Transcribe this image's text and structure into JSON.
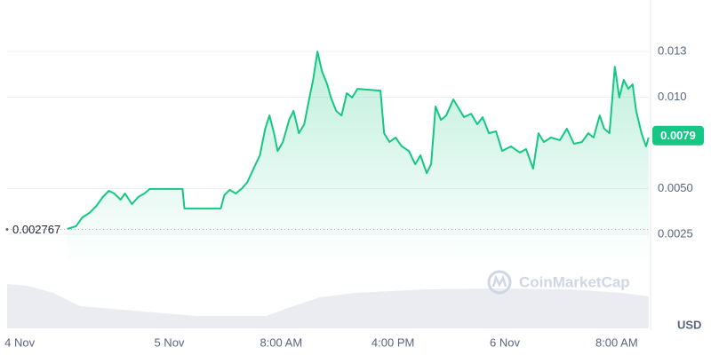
{
  "chart_data": {
    "type": "line",
    "x": [
      16.7,
      17.33,
      17.78,
      18.29,
      18.79,
      19.24,
      19.68,
      20.06,
      20.51,
      20.83,
      21.33,
      21.78,
      22.22,
      22.6,
      24.95,
      25.08,
      27.68,
      27.94,
      28.32,
      28.76,
      29.21,
      29.59,
      30.03,
      30.48,
      30.86,
      31.17,
      31.49,
      31.75,
      32.13,
      32.57,
      32.89,
      33.27,
      33.65,
      34.03,
      34.29,
      34.6,
      34.92,
      35.3,
      35.56,
      35.94,
      36.32,
      36.7,
      37.08,
      37.46,
      39.11,
      39.37,
      39.75,
      40.19,
      40.63,
      41.14,
      41.59,
      41.97,
      42.41,
      42.73,
      43.05,
      43.43,
      43.81,
      44.32,
      44.7,
      45.08,
      45.59,
      46.03,
      46.41,
      46.86,
      47.37,
      47.81,
      48.44,
      49.08,
      49.52,
      50.03,
      50.41,
      50.79,
      51.3,
      51.94,
      52.44,
      52.95,
      53.52,
      53.97,
      54.35,
      54.79,
      55.11,
      55.49,
      55.87,
      56.19,
      56.51,
      56.83,
      57.14,
      57.4,
      57.78,
      58.1,
      58.29
    ],
    "series": [
      {
        "color": "#16c784",
        "values": [
          0.00279,
          0.00294,
          0.00342,
          0.00367,
          0.00405,
          0.00454,
          0.00488,
          0.00473,
          0.00439,
          0.00473,
          0.00415,
          0.00454,
          0.00473,
          0.00498,
          0.00498,
          0.00391,
          0.00391,
          0.00464,
          0.00493,
          0.00473,
          0.00502,
          0.00536,
          0.00609,
          0.00682,
          0.00828,
          0.009,
          0.00803,
          0.00706,
          0.00755,
          0.00876,
          0.00925,
          0.00803,
          0.00852,
          0.00998,
          0.01095,
          0.0125,
          0.01143,
          0.0107,
          0.00998,
          0.00925,
          0.009,
          0.01022,
          0.00998,
          0.01046,
          0.01036,
          0.00803,
          0.00755,
          0.00779,
          0.00731,
          0.00706,
          0.00633,
          0.00682,
          0.00585,
          0.00633,
          0.00949,
          0.00876,
          0.009,
          0.00988,
          0.00939,
          0.00891,
          0.0091,
          0.00852,
          0.00891,
          0.00803,
          0.00813,
          0.00706,
          0.00731,
          0.00697,
          0.00716,
          0.00609,
          0.00803,
          0.00755,
          0.00779,
          0.00765,
          0.00828,
          0.00745,
          0.00755,
          0.00803,
          0.00779,
          0.009,
          0.00828,
          0.00803,
          0.01167,
          0.00998,
          0.01095,
          0.01046,
          0.0107,
          0.00925,
          0.00803,
          0.00731,
          0.00779
        ]
      }
    ],
    "xlim": [
      12.4,
      58.3
    ],
    "xticks": [
      {
        "value": 13.3,
        "label": "4 Nov"
      },
      {
        "value": 24,
        "label": "5 Nov"
      },
      {
        "value": 32,
        "label": "8:00 AM"
      },
      {
        "value": 40,
        "label": "4:00 PM"
      },
      {
        "value": 48,
        "label": "6 Nov"
      },
      {
        "value": 56,
        "label": "8:00 AM"
      }
    ],
    "ylim": [
      -0.00265,
      0.01532
    ],
    "yticks": [
      {
        "value": 0.0125,
        "label": "0.013"
      },
      {
        "value": 0.01,
        "label": "0.010"
      },
      {
        "value": 0.005,
        "label": "0.0050"
      },
      0.0025
    ],
    "grid": true,
    "open_price": 0.002767,
    "current_price": {
      "value": 0.0079,
      "label": "0.0079"
    },
    "currency": "USD",
    "watermark": "CoinMarketCap"
  }
}
